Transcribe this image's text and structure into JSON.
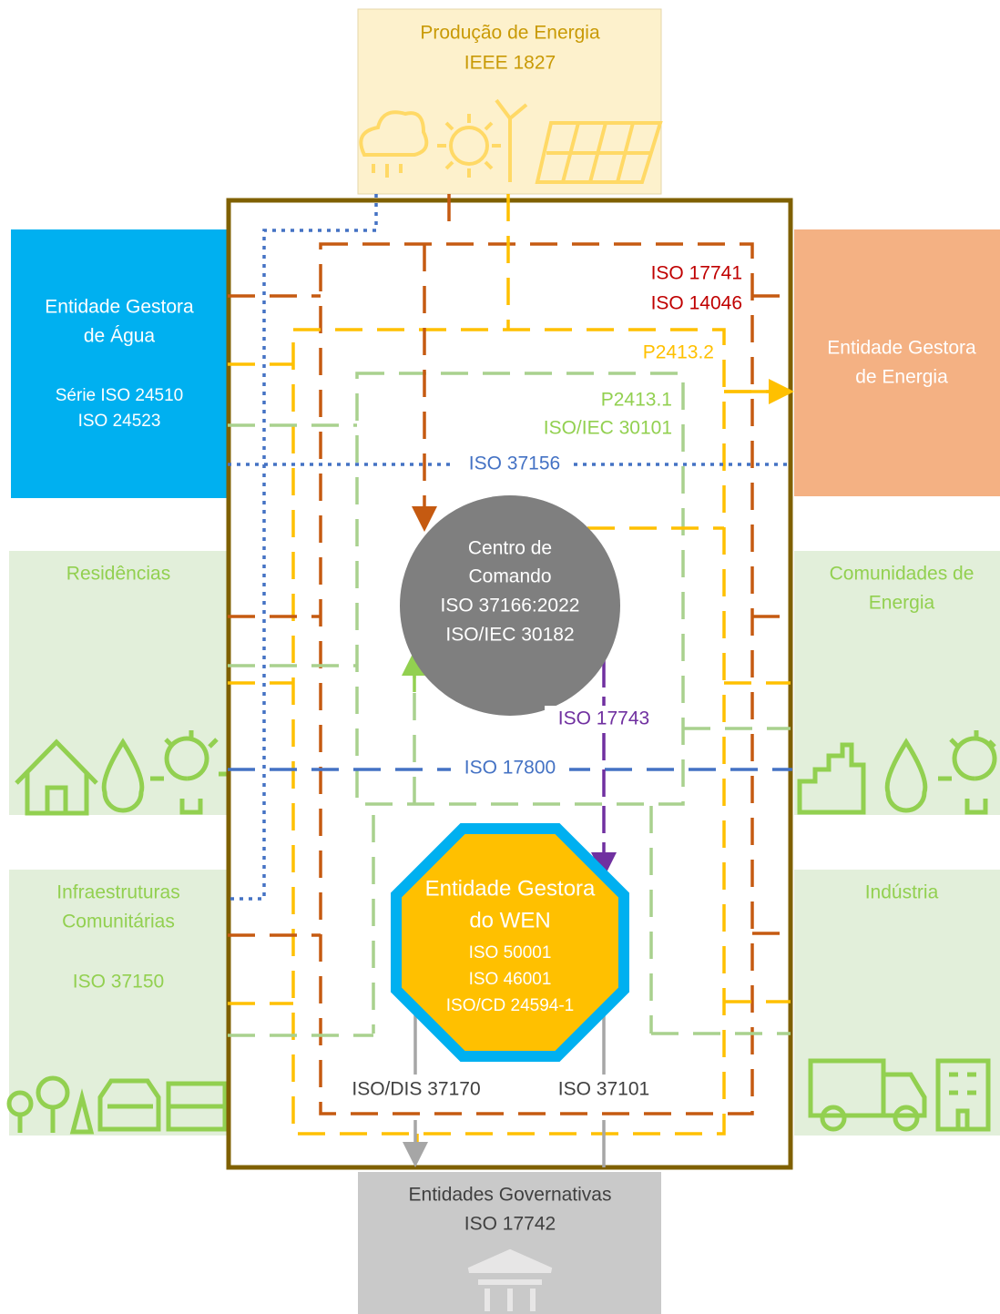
{
  "nodes": [
    {
      "lines": [
        "Produção de Energia",
        "IEEE 1827"
      ]
    },
    {
      "lines": [
        "Entidade Gestora",
        "de Água",
        "Série ISO 24510",
        "ISO 24523"
      ]
    },
    {
      "lines": [
        "Entidade Gestora",
        "de Energia"
      ]
    },
    {
      "lines": [
        "Residências"
      ]
    },
    {
      "lines": [
        "Comunidades de",
        "Energia"
      ]
    },
    {
      "lines": [
        "Infraestruturas",
        "Comunitárias",
        "ISO 37150"
      ]
    },
    {
      "lines": [
        "Indústria"
      ]
    },
    {
      "lines": [
        "Entidades Governativas",
        "ISO 17742"
      ]
    },
    {
      "lines": [
        "Centro de",
        "Comando",
        "ISO 37166:2022",
        "ISO/IEC 30182"
      ]
    },
    {
      "lines": [
        "Entidade Gestora",
        "do WEN",
        "ISO 50001",
        "ISO 46001",
        "ISO/CD 24594-1"
      ]
    }
  ],
  "line_labels": [
    "ISO 17741",
    "ISO 14046",
    "P2413.2",
    "P2413.1",
    "ISO/IEC 30101",
    "ISO 37156",
    "ISO 17743",
    "ISO 17800",
    "ISO/DIS 37170",
    "ISO 37101"
  ]
}
